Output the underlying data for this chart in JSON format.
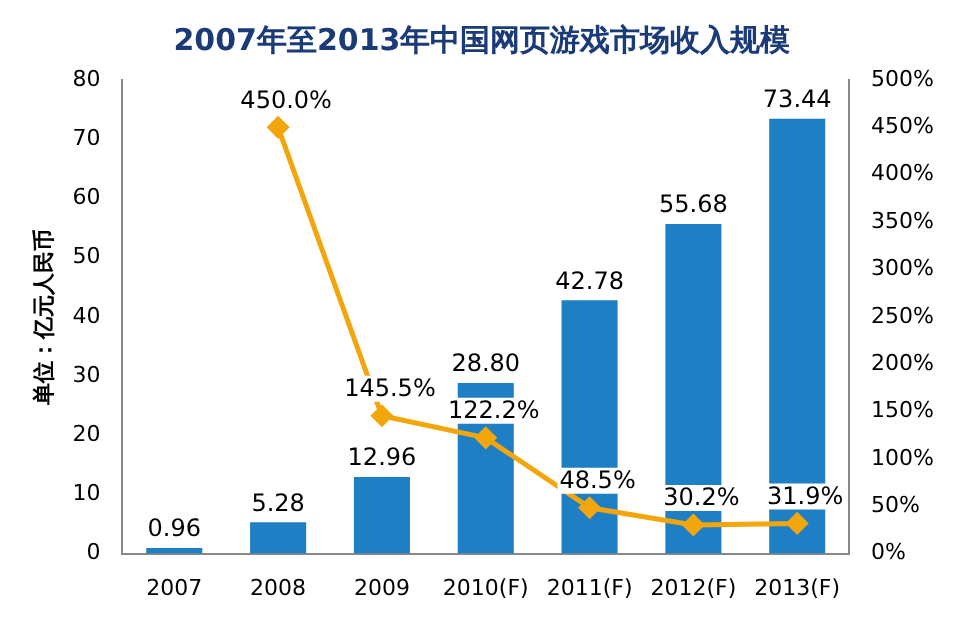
{
  "chart_data": {
    "type": "bar",
    "title": "2007年至2013年中国网页游戏市场收入规模",
    "ylabel": "单位：亿元人民币",
    "categories": [
      "2007",
      "2008",
      "2009",
      "2010(F)",
      "2011(F)",
      "2012(F)",
      "2013(F)"
    ],
    "series": [
      {
        "color": "#1f7fc4",
        "values": [
          0.96,
          5.28,
          12.96,
          28.8,
          42.78,
          55.68,
          73.44
        ],
        "value_labels": [
          "0.96",
          "5.28",
          "12.96",
          "28.80",
          "42.78",
          "55.68",
          "73.44"
        ]
      },
      {
        "type": "line",
        "axis": "y2",
        "color": "#f2a60c",
        "marker": "diamond",
        "values": [
          null,
          450.0,
          145.5,
          122.2,
          48.5,
          30.2,
          31.9
        ],
        "value_labels": [
          null,
          "450.0%",
          "145.5%",
          "122.2%",
          "48.5%",
          "30.2%",
          "31.9%"
        ]
      }
    ],
    "ylim": [
      0,
      80
    ],
    "yticks": [
      0,
      10,
      20,
      30,
      40,
      50,
      60,
      70,
      80
    ],
    "y2lim": [
      0,
      500
    ],
    "y2ticks": [
      {
        "value": 0,
        "label": "0%"
      },
      {
        "value": 50,
        "label": "50%"
      },
      {
        "value": 100,
        "label": "100%"
      },
      {
        "value": 150,
        "label": "150%"
      },
      {
        "value": 200,
        "label": "200%"
      },
      {
        "value": 250,
        "label": "250%"
      },
      {
        "value": 300,
        "label": "300%"
      },
      {
        "value": 350,
        "label": "350%"
      },
      {
        "value": 400,
        "label": "400%"
      },
      {
        "value": 450,
        "label": "450%"
      },
      {
        "value": 500,
        "label": "500%"
      }
    ],
    "grid": false,
    "legend": false
  }
}
